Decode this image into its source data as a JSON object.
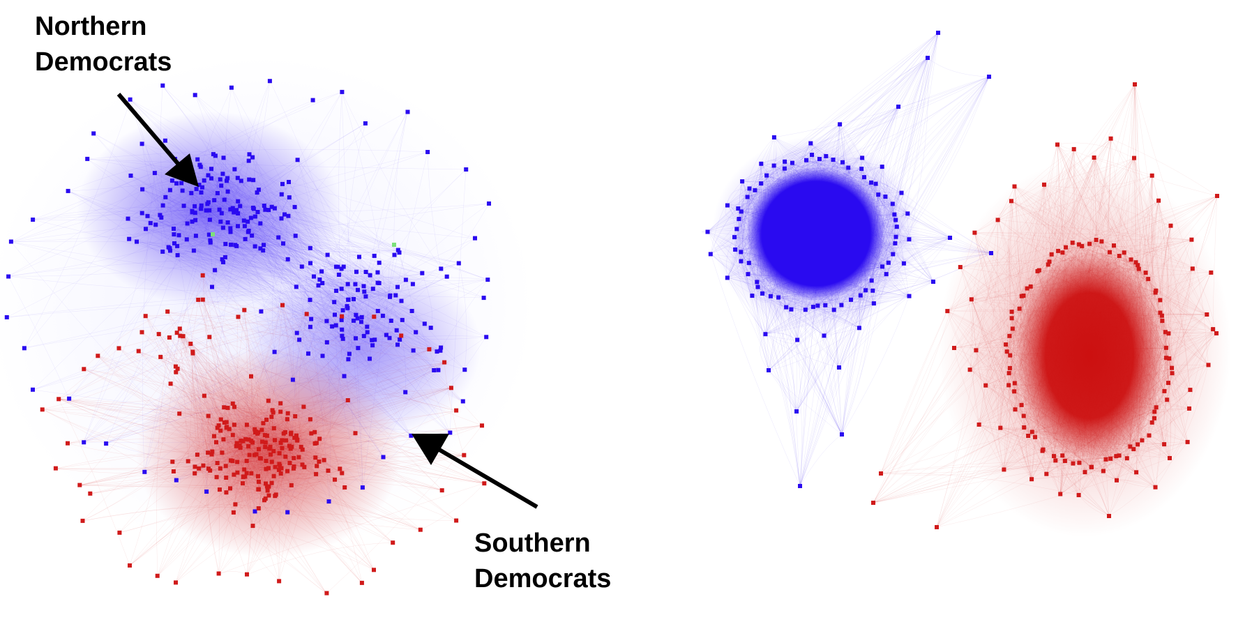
{
  "figure": {
    "background": "#ffffff",
    "colors": {
      "democrat": "#2a0af0",
      "republican": "#d01a1a",
      "independent": "#7de07a",
      "arrow": "#000000"
    },
    "panels": [
      {
        "name": "left-network",
        "description_type": "mixed-clusters"
      },
      {
        "name": "right-network",
        "description_type": "polarized-clusters"
      }
    ]
  },
  "annotations": {
    "north": {
      "line1": "Northern",
      "line2": "Democrats"
    },
    "south": {
      "line1": "Southern",
      "line2": "Democrats"
    }
  }
}
